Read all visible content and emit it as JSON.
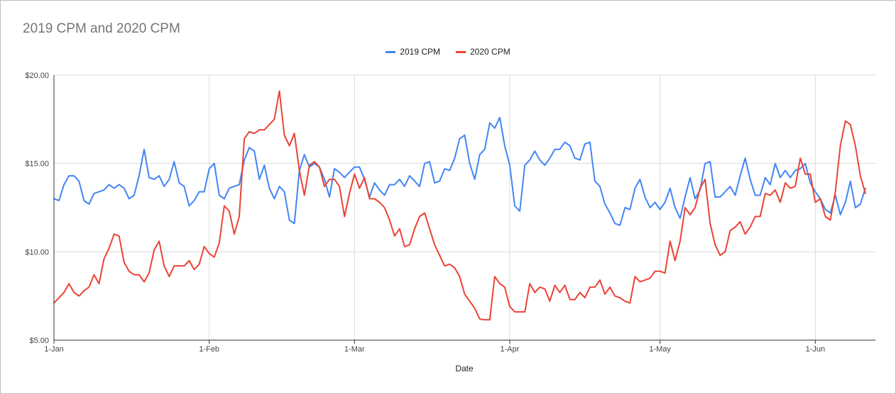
{
  "chart_data": {
    "type": "line",
    "title": "2019 CPM and 2020 CPM",
    "xlabel": "Date",
    "ylabel": "",
    "ylim": [
      5,
      20
    ],
    "yticks": [
      "$5.00",
      "$10.00",
      "$15.00",
      "$20.00"
    ],
    "yticks_values": [
      5,
      10,
      15,
      20
    ],
    "xticks": [
      "1-Jan",
      "1-Feb",
      "1-Mar",
      "1-Apr",
      "1-May",
      "1-Jun"
    ],
    "xticks_days": [
      0,
      31,
      60,
      91,
      121,
      152
    ],
    "x_range_days": [
      0,
      164
    ],
    "grid": true,
    "legend_position": "top-center",
    "series": [
      {
        "name": "2019 CPM",
        "color": "#4285f4",
        "points": [
          [
            0,
            13.0
          ],
          [
            1,
            12.9
          ],
          [
            2,
            13.8
          ],
          [
            3,
            14.3
          ],
          [
            4,
            14.3
          ],
          [
            5,
            14.0
          ],
          [
            6,
            12.9
          ],
          [
            7,
            12.7
          ],
          [
            8,
            13.3
          ],
          [
            9,
            13.4
          ],
          [
            10,
            13.5
          ],
          [
            11,
            13.8
          ],
          [
            12,
            13.6
          ],
          [
            13,
            13.8
          ],
          [
            14,
            13.6
          ],
          [
            15,
            13.0
          ],
          [
            16,
            13.2
          ],
          [
            17,
            14.3
          ],
          [
            18,
            15.8
          ],
          [
            19,
            14.2
          ],
          [
            20,
            14.1
          ],
          [
            21,
            14.3
          ],
          [
            22,
            13.7
          ],
          [
            23,
            14.1
          ],
          [
            24,
            15.1
          ],
          [
            25,
            13.9
          ],
          [
            26,
            13.7
          ],
          [
            27,
            12.6
          ],
          [
            28,
            12.9
          ],
          [
            29,
            13.4
          ],
          [
            30,
            13.4
          ],
          [
            31,
            14.7
          ],
          [
            32,
            15.0
          ],
          [
            33,
            13.2
          ],
          [
            34,
            13.0
          ],
          [
            35,
            13.6
          ],
          [
            36,
            13.7
          ],
          [
            37,
            13.8
          ],
          [
            38,
            15.2
          ],
          [
            39,
            15.9
          ],
          [
            40,
            15.7
          ],
          [
            41,
            14.1
          ],
          [
            42,
            14.9
          ],
          [
            43,
            13.6
          ],
          [
            44,
            13.0
          ],
          [
            45,
            13.7
          ],
          [
            46,
            13.4
          ],
          [
            47,
            11.8
          ],
          [
            48,
            11.6
          ],
          [
            49,
            14.6
          ],
          [
            50,
            15.5
          ],
          [
            51,
            14.8
          ],
          [
            52,
            15.0
          ],
          [
            53,
            14.8
          ],
          [
            54,
            14.1
          ],
          [
            55,
            13.1
          ],
          [
            56,
            14.7
          ],
          [
            57,
            14.5
          ],
          [
            58,
            14.2
          ],
          [
            59,
            14.5
          ],
          [
            60,
            14.8
          ],
          [
            61,
            14.8
          ],
          [
            62,
            14.1
          ],
          [
            63,
            13.1
          ],
          [
            64,
            13.9
          ],
          [
            65,
            13.5
          ],
          [
            66,
            13.2
          ],
          [
            67,
            13.8
          ],
          [
            68,
            13.8
          ],
          [
            69,
            14.1
          ],
          [
            70,
            13.7
          ],
          [
            71,
            14.3
          ],
          [
            72,
            14.0
          ],
          [
            73,
            13.7
          ],
          [
            74,
            15.0
          ],
          [
            75,
            15.1
          ],
          [
            76,
            13.9
          ],
          [
            77,
            14.0
          ],
          [
            78,
            14.7
          ],
          [
            79,
            14.6
          ],
          [
            80,
            15.3
          ],
          [
            81,
            16.4
          ],
          [
            82,
            16.6
          ],
          [
            83,
            15.0
          ],
          [
            84,
            14.1
          ],
          [
            85,
            15.5
          ],
          [
            86,
            15.8
          ],
          [
            87,
            17.3
          ],
          [
            88,
            17.0
          ],
          [
            89,
            17.6
          ],
          [
            90,
            16.0
          ],
          [
            91,
            14.9
          ],
          [
            92,
            12.6
          ],
          [
            93,
            12.3
          ],
          [
            94,
            14.9
          ],
          [
            95,
            15.2
          ],
          [
            96,
            15.7
          ],
          [
            97,
            15.2
          ],
          [
            98,
            14.9
          ],
          [
            99,
            15.3
          ],
          [
            100,
            15.8
          ],
          [
            101,
            15.8
          ],
          [
            102,
            16.2
          ],
          [
            103,
            16.0
          ],
          [
            104,
            15.3
          ],
          [
            105,
            15.2
          ],
          [
            106,
            16.1
          ],
          [
            107,
            16.2
          ],
          [
            108,
            14.0
          ],
          [
            109,
            13.7
          ],
          [
            110,
            12.7
          ],
          [
            111,
            12.2
          ],
          [
            112,
            11.6
          ],
          [
            113,
            11.5
          ],
          [
            114,
            12.5
          ],
          [
            115,
            12.4
          ],
          [
            116,
            13.6
          ],
          [
            117,
            14.1
          ],
          [
            118,
            13.1
          ],
          [
            119,
            12.5
          ],
          [
            120,
            12.8
          ],
          [
            121,
            12.4
          ],
          [
            122,
            12.8
          ],
          [
            123,
            13.6
          ],
          [
            124,
            12.5
          ],
          [
            125,
            11.9
          ],
          [
            126,
            13.1
          ],
          [
            127,
            14.2
          ],
          [
            128,
            13.0
          ],
          [
            129,
            13.5
          ],
          [
            130,
            15.0
          ],
          [
            131,
            15.1
          ],
          [
            132,
            13.1
          ],
          [
            133,
            13.1
          ],
          [
            134,
            13.4
          ],
          [
            135,
            13.7
          ],
          [
            136,
            13.2
          ],
          [
            137,
            14.3
          ],
          [
            138,
            15.3
          ],
          [
            139,
            14.1
          ],
          [
            140,
            13.2
          ],
          [
            141,
            13.2
          ],
          [
            142,
            14.2
          ],
          [
            143,
            13.8
          ],
          [
            144,
            15.0
          ],
          [
            145,
            14.2
          ],
          [
            146,
            14.6
          ],
          [
            147,
            14.2
          ],
          [
            148,
            14.6
          ],
          [
            149,
            14.7
          ],
          [
            150,
            15.0
          ],
          [
            151,
            13.9
          ],
          [
            152,
            13.4
          ],
          [
            153,
            13.0
          ],
          [
            154,
            12.4
          ],
          [
            155,
            12.2
          ],
          [
            156,
            13.2
          ],
          [
            157,
            12.1
          ],
          [
            158,
            12.8
          ],
          [
            159,
            14.0
          ],
          [
            160,
            12.5
          ],
          [
            161,
            12.7
          ],
          [
            162,
            13.6
          ]
        ]
      },
      {
        "name": "2020 CPM",
        "color": "#ea4335",
        "points": [
          [
            0,
            7.1
          ],
          [
            1,
            7.4
          ],
          [
            2,
            7.7
          ],
          [
            3,
            8.2
          ],
          [
            4,
            7.7
          ],
          [
            5,
            7.5
          ],
          [
            6,
            7.8
          ],
          [
            7,
            8.0
          ],
          [
            8,
            8.7
          ],
          [
            9,
            8.2
          ],
          [
            10,
            9.6
          ],
          [
            11,
            10.2
          ],
          [
            12,
            11.0
          ],
          [
            13,
            10.9
          ],
          [
            14,
            9.4
          ],
          [
            15,
            8.9
          ],
          [
            16,
            8.7
          ],
          [
            17,
            8.7
          ],
          [
            18,
            8.3
          ],
          [
            19,
            8.8
          ],
          [
            20,
            10.1
          ],
          [
            21,
            10.6
          ],
          [
            22,
            9.2
          ],
          [
            23,
            8.6
          ],
          [
            24,
            9.2
          ],
          [
            25,
            9.2
          ],
          [
            26,
            9.2
          ],
          [
            27,
            9.5
          ],
          [
            28,
            9.0
          ],
          [
            29,
            9.3
          ],
          [
            30,
            10.3
          ],
          [
            31,
            9.9
          ],
          [
            32,
            9.7
          ],
          [
            33,
            10.5
          ],
          [
            34,
            12.6
          ],
          [
            35,
            12.3
          ],
          [
            36,
            11.0
          ],
          [
            37,
            12.0
          ],
          [
            38,
            16.4
          ],
          [
            39,
            16.8
          ],
          [
            40,
            16.7
          ],
          [
            41,
            16.9
          ],
          [
            42,
            16.9
          ],
          [
            43,
            17.2
          ],
          [
            44,
            17.5
          ],
          [
            45,
            19.1
          ],
          [
            46,
            16.6
          ],
          [
            47,
            16.0
          ],
          [
            48,
            16.7
          ],
          [
            49,
            14.6
          ],
          [
            50,
            13.2
          ],
          [
            51,
            14.9
          ],
          [
            52,
            15.1
          ],
          [
            53,
            14.8
          ],
          [
            54,
            13.7
          ],
          [
            55,
            14.1
          ],
          [
            56,
            14.1
          ],
          [
            57,
            13.7
          ],
          [
            58,
            12.0
          ],
          [
            59,
            13.3
          ],
          [
            60,
            14.4
          ],
          [
            61,
            13.6
          ],
          [
            62,
            14.2
          ],
          [
            63,
            13.0
          ],
          [
            64,
            13.0
          ],
          [
            65,
            12.8
          ],
          [
            66,
            12.5
          ],
          [
            67,
            11.8
          ],
          [
            68,
            10.9
          ],
          [
            69,
            11.3
          ],
          [
            70,
            10.3
          ],
          [
            71,
            10.4
          ],
          [
            72,
            11.3
          ],
          [
            73,
            12.0
          ],
          [
            74,
            12.2
          ],
          [
            75,
            11.3
          ],
          [
            76,
            10.4
          ],
          [
            77,
            9.8
          ],
          [
            78,
            9.2
          ],
          [
            79,
            9.3
          ],
          [
            80,
            9.1
          ],
          [
            81,
            8.6
          ],
          [
            82,
            7.6
          ],
          [
            83,
            7.2
          ],
          [
            84,
            6.8
          ],
          [
            85,
            6.2
          ],
          [
            86,
            6.15
          ],
          [
            87,
            6.15
          ],
          [
            88,
            8.6
          ],
          [
            89,
            8.2
          ],
          [
            90,
            8.0
          ],
          [
            91,
            6.9
          ],
          [
            92,
            6.6
          ],
          [
            93,
            6.6
          ],
          [
            94,
            6.6
          ],
          [
            95,
            8.2
          ],
          [
            96,
            7.7
          ],
          [
            97,
            8.0
          ],
          [
            98,
            7.9
          ],
          [
            99,
            7.2
          ],
          [
            100,
            8.1
          ],
          [
            101,
            7.7
          ],
          [
            102,
            8.1
          ],
          [
            103,
            7.3
          ],
          [
            104,
            7.3
          ],
          [
            105,
            7.7
          ],
          [
            106,
            7.4
          ],
          [
            107,
            8.0
          ],
          [
            108,
            8.0
          ],
          [
            109,
            8.4
          ],
          [
            110,
            7.6
          ],
          [
            111,
            8.0
          ],
          [
            112,
            7.5
          ],
          [
            113,
            7.4
          ],
          [
            114,
            7.2
          ],
          [
            115,
            7.1
          ],
          [
            116,
            8.6
          ],
          [
            117,
            8.3
          ],
          [
            118,
            8.4
          ],
          [
            119,
            8.5
          ],
          [
            120,
            8.9
          ],
          [
            121,
            8.9
          ],
          [
            122,
            8.8
          ],
          [
            123,
            10.6
          ],
          [
            124,
            9.5
          ],
          [
            125,
            10.6
          ],
          [
            126,
            12.5
          ],
          [
            127,
            12.1
          ],
          [
            128,
            12.5
          ],
          [
            129,
            13.6
          ],
          [
            130,
            14.1
          ],
          [
            131,
            11.6
          ],
          [
            132,
            10.4
          ],
          [
            133,
            9.8
          ],
          [
            134,
            10.0
          ],
          [
            135,
            11.2
          ],
          [
            136,
            11.4
          ],
          [
            137,
            11.7
          ],
          [
            138,
            11.0
          ],
          [
            139,
            11.4
          ],
          [
            140,
            12.0
          ],
          [
            141,
            12.0
          ],
          [
            142,
            13.3
          ],
          [
            143,
            13.2
          ],
          [
            144,
            13.5
          ],
          [
            145,
            12.8
          ],
          [
            146,
            13.9
          ],
          [
            147,
            13.6
          ],
          [
            148,
            13.7
          ],
          [
            149,
            15.3
          ],
          [
            150,
            14.4
          ],
          [
            151,
            14.4
          ],
          [
            152,
            12.8
          ],
          [
            153,
            13.0
          ],
          [
            154,
            12.0
          ],
          [
            155,
            11.8
          ],
          [
            156,
            13.4
          ],
          [
            157,
            16.0
          ],
          [
            158,
            17.4
          ],
          [
            159,
            17.2
          ],
          [
            160,
            16.0
          ],
          [
            161,
            14.3
          ],
          [
            162,
            13.3
          ]
        ]
      }
    ]
  }
}
